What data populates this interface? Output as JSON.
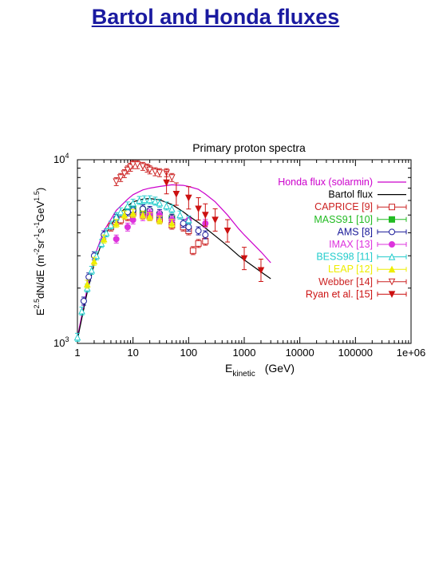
{
  "slide": {
    "title": "Bartol and Honda fluxes"
  },
  "chart_data": {
    "type": "scatter",
    "title": "Primary proton spectra",
    "xlabel": {
      "main": "E",
      "sub": "kinetic",
      "unit": "(GeV)"
    },
    "ylabel": {
      "text": "E^2.5 dN/dE (m^-2 sr^-1 s^-1 GeV^1.5)"
    },
    "xscale": "log",
    "yscale": "log",
    "xlim": [
      1,
      1000000
    ],
    "ylim": [
      1000,
      10000
    ],
    "xticks": [
      {
        "v": 1,
        "label": "1"
      },
      {
        "v": 10,
        "label": "10"
      },
      {
        "v": 100,
        "label": "100"
      },
      {
        "v": 1000,
        "label": "1000"
      },
      {
        "v": 10000,
        "label": "10000"
      },
      {
        "v": 100000,
        "label": "100000"
      },
      {
        "v": 1000000,
        "label": "1e+06"
      }
    ],
    "yticks": [
      {
        "v": 1000,
        "base": "10",
        "exp": "3"
      },
      {
        "v": 10000,
        "base": "10",
        "exp": "4"
      }
    ],
    "legend_position": "top-right",
    "series": [
      {
        "name": "Honda flux (solarmin)",
        "type": "line",
        "color": "#cc00cc",
        "x": [
          1,
          1.5,
          2,
          3,
          5,
          8,
          10,
          15,
          20,
          30,
          50,
          80,
          100,
          150,
          200,
          300,
          500,
          800,
          1000,
          2000,
          3000
        ],
        "y": [
          1080,
          2000,
          2950,
          4100,
          5300,
          6100,
          6450,
          6850,
          7000,
          7150,
          7300,
          7250,
          7150,
          6900,
          6500,
          5900,
          5000,
          4200,
          3900,
          3150,
          2750
        ]
      },
      {
        "name": "Bartol flux",
        "type": "line",
        "color": "#000000",
        "x": [
          1,
          1.5,
          2,
          3,
          5,
          8,
          10,
          15,
          20,
          30,
          50,
          80,
          100,
          150,
          200,
          300,
          500,
          800,
          1000,
          2000,
          3000
        ],
        "y": [
          1050,
          1900,
          2700,
          3800,
          4900,
          5600,
          5900,
          6100,
          6150,
          6050,
          5700,
          5200,
          4950,
          4550,
          4250,
          3850,
          3400,
          3000,
          2850,
          2450,
          2250
        ]
      },
      {
        "name": "CAPRICE [9]",
        "type": "marker",
        "marker": "square-open",
        "color": "#cc2222",
        "x": [
          4,
          6,
          8,
          10,
          15,
          20,
          30,
          50,
          80,
          100,
          120,
          150,
          200
        ],
        "y": [
          4300,
          4700,
          4900,
          5100,
          5000,
          4900,
          4700,
          4400,
          4300,
          4100,
          3200,
          3500,
          3600
        ]
      },
      {
        "name": "MASS91 [10]",
        "type": "marker",
        "marker": "square-filled",
        "color": "#22bb22",
        "x": [
          8,
          10,
          15,
          20,
          30,
          50
        ],
        "y": [
          5300,
          5400,
          5300,
          5200,
          5000,
          4800
        ]
      },
      {
        "name": "AMS [8]",
        "type": "marker",
        "marker": "circle-open",
        "color": "#1a1a99",
        "x": [
          1.3,
          1.6,
          2,
          3,
          5,
          8,
          10,
          15,
          20,
          30,
          50,
          80,
          100,
          150,
          200
        ],
        "y": [
          1700,
          2300,
          3000,
          3900,
          4800,
          5200,
          5300,
          5400,
          5300,
          5100,
          4800,
          4500,
          4300,
          4100,
          3900
        ]
      },
      {
        "name": "IMAX [13]",
        "type": "marker",
        "marker": "circle-filled",
        "color": "#dd33dd",
        "x": [
          5,
          8,
          10,
          15,
          20,
          30,
          50,
          100,
          200
        ],
        "y": [
          3700,
          4300,
          4700,
          4900,
          5100,
          5000,
          4700,
          4700,
          4500
        ]
      },
      {
        "name": "BESS98 [11]",
        "type": "marker",
        "marker": "triangle-up-open",
        "color": "#22cccc",
        "x": [
          1,
          1.2,
          1.5,
          1.8,
          2.2,
          2.7,
          3.3,
          4,
          5,
          6,
          8,
          10,
          13,
          16,
          20,
          25,
          30,
          40,
          50,
          70,
          100
        ],
        "y": [
          1080,
          1500,
          2000,
          2500,
          3000,
          3500,
          4000,
          4400,
          4900,
          5200,
          5600,
          5800,
          6000,
          6050,
          6050,
          5950,
          5800,
          5600,
          5400,
          5000,
          4700
        ]
      },
      {
        "name": "LEAP [12]",
        "type": "marker",
        "marker": "triangle-up-filled",
        "color": "#eeee00",
        "x": [
          1.5,
          2,
          3,
          5,
          7,
          10,
          15,
          20,
          30,
          50
        ],
        "y": [
          2100,
          2800,
          3700,
          4500,
          5000,
          5100,
          5000,
          4900,
          4700,
          4500
        ]
      },
      {
        "name": "Webber [14]",
        "type": "marker",
        "marker": "triangle-down-open",
        "color": "#cc2222",
        "x": [
          5,
          6,
          7,
          8,
          9,
          10,
          12,
          15,
          18,
          20,
          25,
          30,
          40,
          50
        ],
        "y": [
          7600,
          8000,
          8400,
          8800,
          9100,
          9400,
          9400,
          9200,
          9000,
          8800,
          8600,
          8500,
          8500,
          8000
        ]
      },
      {
        "name": "Ryan et al. [15]",
        "type": "marker",
        "marker": "triangle-down-filled",
        "color": "#cc1111",
        "x": [
          40,
          60,
          100,
          150,
          200,
          300,
          500,
          1000,
          2000
        ],
        "y": [
          7500,
          6500,
          6200,
          5400,
          5000,
          4700,
          4100,
          2900,
          2500
        ]
      }
    ]
  }
}
